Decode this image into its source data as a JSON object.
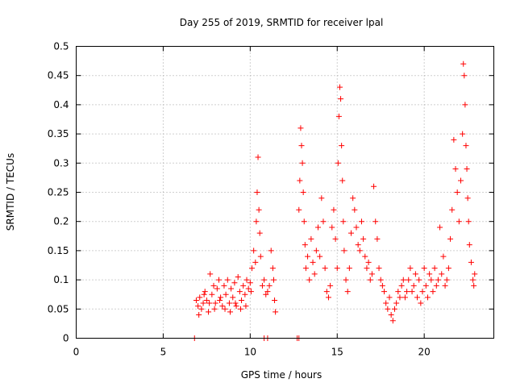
{
  "chart_data": {
    "type": "scatter",
    "title": "Day 255 of 2019, SRMTID for receiver lpal",
    "xlabel": "GPS time / hours",
    "ylabel": "SRMTID / TECUs",
    "xlim": [
      0,
      24
    ],
    "ylim": [
      0,
      0.5
    ],
    "xticks": [
      0,
      5,
      10,
      15,
      20
    ],
    "xtick_labels": [
      "0",
      "5",
      "10",
      "15",
      "20"
    ],
    "yticks": [
      0,
      0.05,
      0.1,
      0.15,
      0.2,
      0.25,
      0.3,
      0.35,
      0.4,
      0.45,
      0.5
    ],
    "ytick_labels": [
      "0",
      "0.05",
      "0.1",
      "0.15",
      "0.2",
      "0.25",
      "0.3",
      "0.35",
      "0.4",
      "0.45",
      "0.5"
    ],
    "grid": true,
    "marker": "+",
    "color": "#ff0000",
    "series": [
      {
        "name": "SRMTID",
        "points": [
          [
            6.8,
            0.0
          ],
          [
            10.8,
            0.0
          ],
          [
            11.0,
            0.0
          ],
          [
            12.7,
            0.0
          ],
          [
            12.8,
            0.0
          ],
          [
            6.9,
            0.065
          ],
          [
            7.0,
            0.055
          ],
          [
            7.1,
            0.07
          ],
          [
            7.2,
            0.05
          ],
          [
            7.3,
            0.06
          ],
          [
            7.4,
            0.08
          ],
          [
            7.5,
            0.065
          ],
          [
            7.6,
            0.045
          ],
          [
            7.7,
            0.11
          ],
          [
            7.8,
            0.075
          ],
          [
            7.9,
            0.09
          ],
          [
            8.0,
            0.06
          ],
          [
            8.1,
            0.085
          ],
          [
            8.2,
            0.1
          ],
          [
            8.3,
            0.07
          ],
          [
            8.4,
            0.055
          ],
          [
            8.5,
            0.09
          ],
          [
            8.6,
            0.075
          ],
          [
            8.7,
            0.1
          ],
          [
            8.8,
            0.06
          ],
          [
            8.9,
            0.085
          ],
          [
            9.0,
            0.07
          ],
          [
            9.1,
            0.095
          ],
          [
            9.2,
            0.055
          ],
          [
            9.3,
            0.105
          ],
          [
            9.4,
            0.08
          ],
          [
            9.5,
            0.065
          ],
          [
            9.6,
            0.09
          ],
          [
            9.7,
            0.075
          ],
          [
            9.8,
            0.1
          ],
          [
            9.9,
            0.085
          ],
          [
            10.0,
            0.095
          ],
          [
            7.05,
            0.04
          ],
          [
            7.35,
            0.075
          ],
          [
            7.65,
            0.06
          ],
          [
            7.95,
            0.05
          ],
          [
            8.25,
            0.065
          ],
          [
            8.55,
            0.05
          ],
          [
            8.85,
            0.045
          ],
          [
            9.15,
            0.06
          ],
          [
            9.45,
            0.05
          ],
          [
            9.75,
            0.055
          ],
          [
            10.05,
            0.08
          ],
          [
            10.1,
            0.12
          ],
          [
            10.2,
            0.15
          ],
          [
            10.3,
            0.13
          ],
          [
            10.35,
            0.2
          ],
          [
            10.4,
            0.25
          ],
          [
            10.45,
            0.31
          ],
          [
            10.5,
            0.22
          ],
          [
            10.55,
            0.18
          ],
          [
            10.6,
            0.14
          ],
          [
            10.7,
            0.09
          ],
          [
            10.8,
            0.1
          ],
          [
            10.9,
            0.075
          ],
          [
            11.0,
            0.08
          ],
          [
            11.1,
            0.09
          ],
          [
            11.2,
            0.15
          ],
          [
            11.3,
            0.12
          ],
          [
            11.35,
            0.1
          ],
          [
            11.4,
            0.065
          ],
          [
            11.45,
            0.045
          ],
          [
            12.8,
            0.22
          ],
          [
            12.85,
            0.27
          ],
          [
            12.9,
            0.36
          ],
          [
            12.95,
            0.33
          ],
          [
            13.0,
            0.3
          ],
          [
            13.05,
            0.25
          ],
          [
            13.1,
            0.2
          ],
          [
            13.15,
            0.16
          ],
          [
            13.2,
            0.12
          ],
          [
            13.3,
            0.14
          ],
          [
            13.4,
            0.1
          ],
          [
            13.5,
            0.17
          ],
          [
            13.6,
            0.13
          ],
          [
            13.7,
            0.11
          ],
          [
            13.8,
            0.15
          ],
          [
            13.9,
            0.19
          ],
          [
            14.0,
            0.14
          ],
          [
            14.1,
            0.24
          ],
          [
            14.2,
            0.2
          ],
          [
            14.3,
            0.12
          ],
          [
            14.4,
            0.08
          ],
          [
            14.5,
            0.07
          ],
          [
            14.6,
            0.09
          ],
          [
            14.7,
            0.19
          ],
          [
            14.8,
            0.22
          ],
          [
            14.9,
            0.17
          ],
          [
            15.0,
            0.12
          ],
          [
            15.05,
            0.3
          ],
          [
            15.1,
            0.38
          ],
          [
            15.15,
            0.43
          ],
          [
            15.2,
            0.41
          ],
          [
            15.25,
            0.33
          ],
          [
            15.3,
            0.27
          ],
          [
            15.35,
            0.2
          ],
          [
            15.4,
            0.15
          ],
          [
            15.5,
            0.1
          ],
          [
            15.6,
            0.08
          ],
          [
            15.7,
            0.12
          ],
          [
            15.8,
            0.18
          ],
          [
            15.9,
            0.24
          ],
          [
            16.0,
            0.22
          ],
          [
            16.1,
            0.19
          ],
          [
            16.2,
            0.16
          ],
          [
            16.3,
            0.15
          ],
          [
            16.4,
            0.2
          ],
          [
            16.5,
            0.17
          ],
          [
            16.6,
            0.14
          ],
          [
            16.7,
            0.12
          ],
          [
            16.8,
            0.13
          ],
          [
            16.9,
            0.1
          ],
          [
            17.0,
            0.11
          ],
          [
            17.1,
            0.26
          ],
          [
            17.2,
            0.2
          ],
          [
            17.3,
            0.17
          ],
          [
            17.4,
            0.12
          ],
          [
            17.5,
            0.1
          ],
          [
            17.6,
            0.09
          ],
          [
            17.7,
            0.08
          ],
          [
            17.8,
            0.06
          ],
          [
            17.9,
            0.05
          ],
          [
            18.0,
            0.07
          ],
          [
            18.1,
            0.04
          ],
          [
            18.2,
            0.03
          ],
          [
            18.3,
            0.05
          ],
          [
            18.4,
            0.06
          ],
          [
            18.5,
            0.08
          ],
          [
            18.6,
            0.07
          ],
          [
            18.7,
            0.09
          ],
          [
            18.8,
            0.1
          ],
          [
            18.9,
            0.07
          ],
          [
            19.0,
            0.08
          ],
          [
            19.1,
            0.1
          ],
          [
            19.2,
            0.12
          ],
          [
            19.3,
            0.08
          ],
          [
            19.4,
            0.09
          ],
          [
            19.5,
            0.11
          ],
          [
            19.6,
            0.07
          ],
          [
            19.7,
            0.1
          ],
          [
            19.8,
            0.06
          ],
          [
            19.9,
            0.08
          ],
          [
            20.0,
            0.12
          ],
          [
            20.1,
            0.09
          ],
          [
            20.2,
            0.07
          ],
          [
            20.3,
            0.11
          ],
          [
            20.4,
            0.1
          ],
          [
            20.5,
            0.08
          ],
          [
            20.6,
            0.12
          ],
          [
            20.7,
            0.09
          ],
          [
            20.8,
            0.1
          ],
          [
            20.9,
            0.19
          ],
          [
            21.0,
            0.11
          ],
          [
            21.1,
            0.14
          ],
          [
            21.2,
            0.09
          ],
          [
            21.3,
            0.1
          ],
          [
            21.4,
            0.12
          ],
          [
            21.5,
            0.17
          ],
          [
            21.6,
            0.22
          ],
          [
            21.7,
            0.34
          ],
          [
            21.8,
            0.29
          ],
          [
            21.9,
            0.25
          ],
          [
            22.0,
            0.2
          ],
          [
            22.1,
            0.27
          ],
          [
            22.2,
            0.35
          ],
          [
            22.25,
            0.47
          ],
          [
            22.3,
            0.45
          ],
          [
            22.35,
            0.4
          ],
          [
            22.4,
            0.33
          ],
          [
            22.45,
            0.29
          ],
          [
            22.5,
            0.24
          ],
          [
            22.55,
            0.2
          ],
          [
            22.6,
            0.16
          ],
          [
            22.7,
            0.13
          ],
          [
            22.8,
            0.1
          ],
          [
            22.85,
            0.09
          ],
          [
            22.9,
            0.11
          ]
        ]
      }
    ]
  }
}
